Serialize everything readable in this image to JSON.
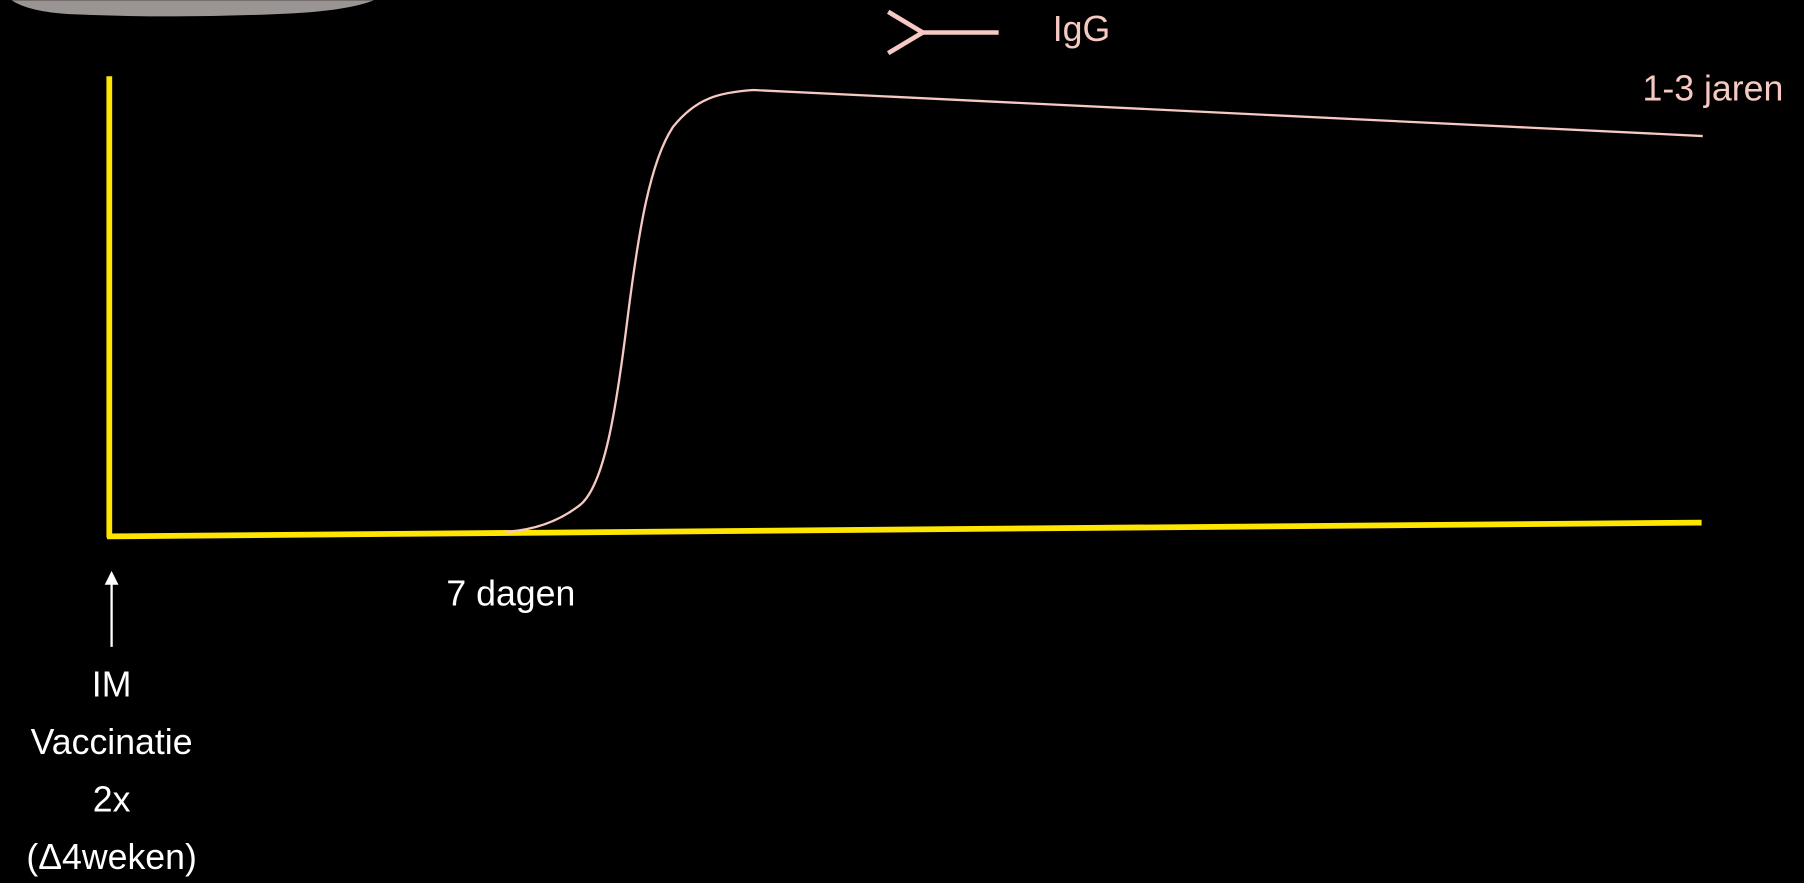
{
  "legend": {
    "label": "IgG"
  },
  "annotations": {
    "duration": "1-3 jaren",
    "onset": "7 dagen"
  },
  "injection": {
    "lines": [
      "IM",
      "Vaccinatie",
      "2x",
      "(Δ4weken)"
    ]
  }
}
